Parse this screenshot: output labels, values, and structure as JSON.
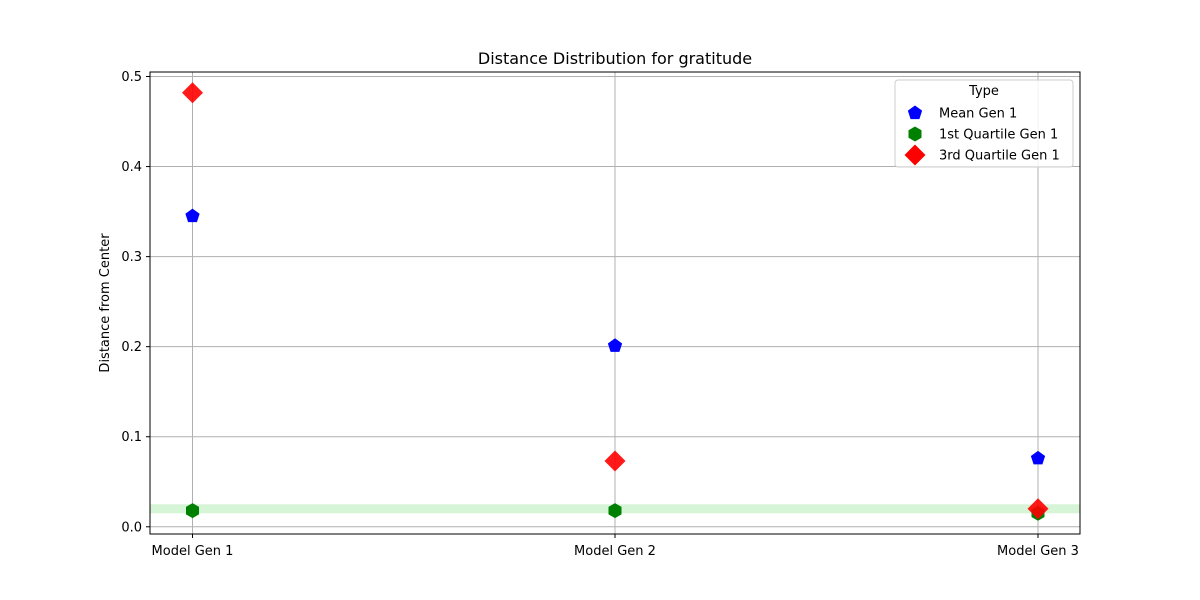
{
  "chart_data": {
    "type": "scatter",
    "title": "Distance Distribution for gratitude",
    "xlabel": "",
    "ylabel": "Distance from Center",
    "categories": [
      "Model Gen 1",
      "Model Gen 2",
      "Model Gen 3"
    ],
    "ylim": [
      -0.008,
      0.505
    ],
    "yticks": [
      "0.0",
      "0.1",
      "0.2",
      "0.3",
      "0.4",
      "0.5"
    ],
    "grid": true,
    "legend": {
      "title": "Type",
      "placement": "top-right"
    },
    "band": {
      "y_range": [
        0.015,
        0.025
      ],
      "color": "#c8f0c8"
    },
    "series": [
      {
        "name": "Mean Gen 1",
        "marker": "pentagon",
        "color": "#0000ff",
        "values": [
          0.345,
          0.201,
          0.076
        ]
      },
      {
        "name": "1st Quartile Gen 1",
        "marker": "hexagon",
        "color": "#008000",
        "values": [
          0.018,
          0.018,
          0.015
        ]
      },
      {
        "name": "3rd Quartile Gen 1",
        "marker": "diamond",
        "color": "#ff0000",
        "values": [
          0.482,
          0.073,
          0.02
        ]
      }
    ]
  }
}
